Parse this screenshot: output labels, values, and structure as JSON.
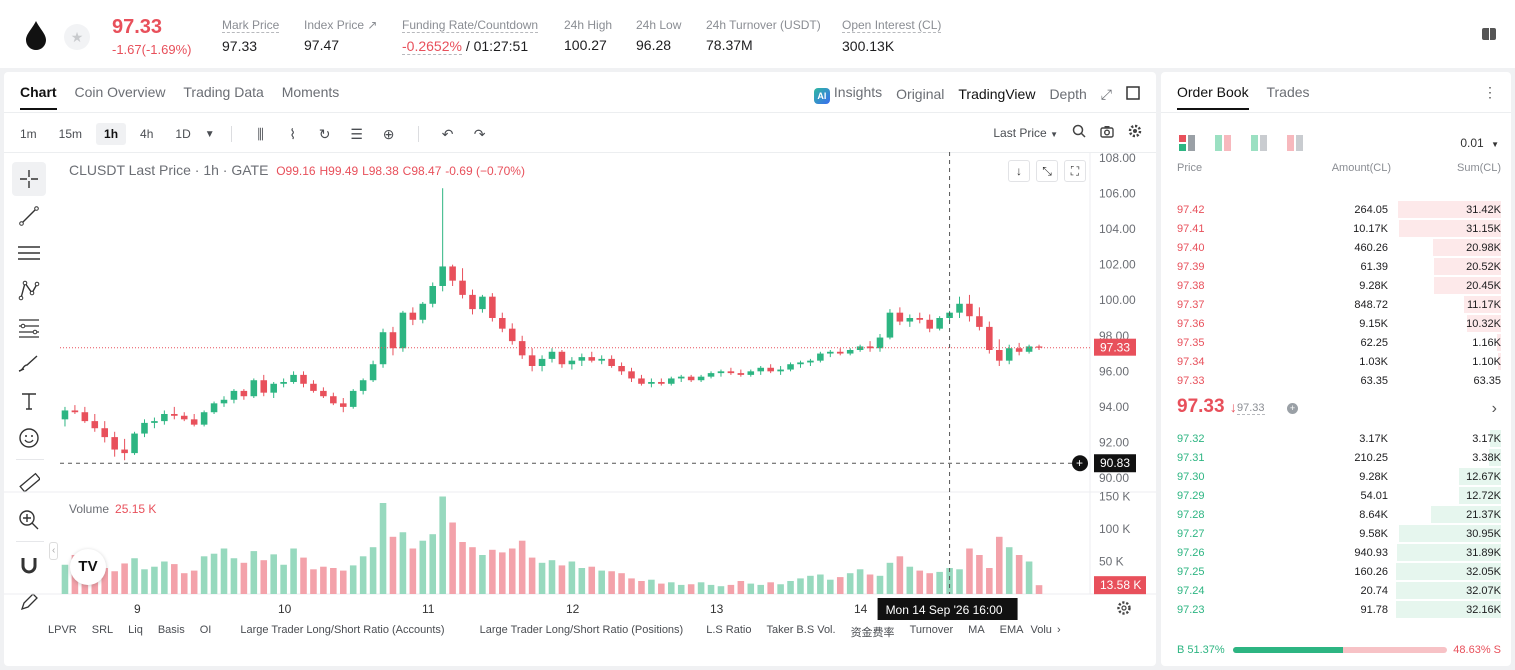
{
  "header": {
    "price": "97.33",
    "change": "-1.67(-1.69%)",
    "stats": [
      {
        "label": "Mark Price",
        "value": "97.33"
      },
      {
        "label": "Index Price ↗",
        "value": "97.47"
      },
      {
        "label": "Funding Rate/Countdown",
        "value": "-0.2652%",
        "value2": "/ 01:27:51"
      },
      {
        "label": "24h High",
        "value": "100.27"
      },
      {
        "label": "24h Low",
        "value": "96.28"
      },
      {
        "label": "24h Turnover (USDT)",
        "value": "78.37M"
      },
      {
        "label": "Open Interest (CL)",
        "value": "300.13K"
      }
    ]
  },
  "chart_tabs": [
    "Chart",
    "Coin Overview",
    "Trading Data",
    "Moments"
  ],
  "view_tabs": {
    "insights": "Insights",
    "original": "Original",
    "tradingview": "TradingView",
    "depth": "Depth"
  },
  "intervals": [
    "1m",
    "15m",
    "1h",
    "4h",
    "1D"
  ],
  "price_type": "Last Price",
  "legend": {
    "symbol": "CLUSDT Last Price · 1h · GATE",
    "o": "O99.16",
    "h": "H99.49",
    "l": "L98.38",
    "c": "C98.47",
    "chg": "-0.69 (−0.70%)"
  },
  "volume_legend": {
    "label": "Volume",
    "value": "25.15 K"
  },
  "price_axis": [
    "108.00",
    "106.00",
    "104.00",
    "102.00",
    "100.00",
    "98.00",
    "96.00",
    "94.00",
    "92.00",
    "90.00"
  ],
  "volume_axis": [
    "150 K",
    "100 K",
    "50 K"
  ],
  "last_price_label": "97.33",
  "cursor_price_label": "90.83",
  "volume_last_label": "13.58 K",
  "x_labels": [
    "9",
    "10",
    "11",
    "12",
    "13",
    "14"
  ],
  "cursor_time": "Mon 14 Sep '26   16:00",
  "indicators": [
    "LPVR",
    "SRL",
    "Liq",
    "Basis",
    "OI",
    "Large Trader Long/Short Ratio (Accounts)",
    "Large Trader Long/Short Ratio (Positions)",
    "L.S Ratio",
    "Taker B.S Vol.",
    "资金费率",
    "Turnover",
    "MA",
    "EMA",
    "Volu"
  ],
  "chart_data": {
    "type": "candlestick",
    "title": "CLUSDT Last Price · 1h · GATE",
    "ylim": [
      90,
      108
    ],
    "x_ticks": [
      "9",
      "10",
      "11",
      "12",
      "13",
      "14"
    ],
    "last_price": 97.33,
    "candles": [
      [
        93.3,
        94.0,
        92.9,
        93.8
      ],
      [
        93.8,
        94.1,
        93.6,
        93.7
      ],
      [
        93.7,
        94.0,
        93.1,
        93.2
      ],
      [
        93.2,
        93.6,
        92.6,
        92.8
      ],
      [
        92.8,
        93.2,
        92.0,
        92.3
      ],
      [
        92.3,
        92.6,
        91.2,
        91.6
      ],
      [
        91.6,
        92.2,
        91.0,
        91.4
      ],
      [
        91.4,
        92.6,
        91.3,
        92.5
      ],
      [
        92.5,
        93.3,
        92.3,
        93.1
      ],
      [
        93.1,
        93.4,
        92.8,
        93.2
      ],
      [
        93.2,
        93.8,
        93.0,
        93.6
      ],
      [
        93.6,
        94.0,
        93.3,
        93.5
      ],
      [
        93.5,
        93.7,
        93.2,
        93.3
      ],
      [
        93.3,
        93.6,
        92.9,
        93.0
      ],
      [
        93.0,
        93.8,
        92.9,
        93.7
      ],
      [
        93.7,
        94.3,
        93.6,
        94.2
      ],
      [
        94.2,
        94.6,
        94.0,
        94.4
      ],
      [
        94.4,
        95.0,
        94.2,
        94.9
      ],
      [
        94.9,
        95.0,
        94.4,
        94.6
      ],
      [
        94.6,
        95.6,
        94.5,
        95.5
      ],
      [
        95.5,
        95.8,
        94.6,
        94.8
      ],
      [
        94.8,
        95.4,
        94.5,
        95.3
      ],
      [
        95.3,
        95.6,
        95.1,
        95.4
      ],
      [
        95.4,
        96.0,
        95.3,
        95.8
      ],
      [
        95.8,
        96.0,
        95.1,
        95.3
      ],
      [
        95.3,
        95.5,
        94.8,
        94.9
      ],
      [
        94.9,
        95.1,
        94.5,
        94.6
      ],
      [
        94.6,
        94.8,
        94.1,
        94.2
      ],
      [
        94.2,
        94.5,
        93.7,
        94.0
      ],
      [
        94.0,
        95.0,
        93.9,
        94.9
      ],
      [
        94.9,
        95.6,
        94.7,
        95.5
      ],
      [
        95.5,
        96.6,
        95.4,
        96.4
      ],
      [
        96.4,
        98.4,
        96.2,
        98.2
      ],
      [
        98.2,
        98.5,
        96.9,
        97.3
      ],
      [
        97.3,
        99.4,
        97.1,
        99.3
      ],
      [
        99.3,
        99.6,
        98.6,
        98.9
      ],
      [
        98.9,
        99.9,
        98.7,
        99.8
      ],
      [
        99.8,
        101.0,
        99.6,
        100.8
      ],
      [
        100.8,
        106.3,
        100.5,
        101.9
      ],
      [
        101.9,
        102.0,
        100.8,
        101.1
      ],
      [
        101.1,
        101.8,
        100.1,
        100.3
      ],
      [
        100.3,
        100.6,
        99.2,
        99.5
      ],
      [
        99.5,
        100.3,
        99.3,
        100.2
      ],
      [
        100.2,
        100.4,
        98.8,
        99.0
      ],
      [
        99.0,
        99.3,
        98.2,
        98.4
      ],
      [
        98.4,
        98.7,
        97.5,
        97.7
      ],
      [
        97.7,
        98.0,
        96.7,
        96.9
      ],
      [
        96.9,
        97.3,
        96.0,
        96.3
      ],
      [
        96.3,
        96.9,
        96.0,
        96.7
      ],
      [
        96.7,
        97.3,
        96.5,
        97.1
      ],
      [
        97.1,
        97.2,
        96.2,
        96.4
      ],
      [
        96.4,
        96.8,
        96.1,
        96.6
      ],
      [
        96.6,
        97.0,
        96.3,
        96.8
      ],
      [
        96.8,
        97.1,
        96.5,
        96.6
      ],
      [
        96.6,
        96.9,
        96.4,
        96.7
      ],
      [
        96.7,
        96.9,
        96.2,
        96.3
      ],
      [
        96.3,
        96.5,
        95.8,
        96.0
      ],
      [
        96.0,
        96.2,
        95.4,
        95.6
      ],
      [
        95.6,
        95.8,
        95.2,
        95.3
      ],
      [
        95.3,
        95.6,
        95.1,
        95.4
      ],
      [
        95.4,
        95.6,
        95.2,
        95.3
      ],
      [
        95.3,
        95.7,
        95.2,
        95.6
      ],
      [
        95.6,
        95.8,
        95.4,
        95.7
      ],
      [
        95.7,
        95.8,
        95.4,
        95.5
      ],
      [
        95.5,
        95.8,
        95.4,
        95.7
      ],
      [
        95.7,
        96.0,
        95.6,
        95.9
      ],
      [
        95.9,
        96.1,
        95.7,
        96.0
      ],
      [
        96.0,
        96.2,
        95.8,
        95.9
      ],
      [
        95.9,
        96.1,
        95.7,
        95.8
      ],
      [
        95.8,
        96.1,
        95.7,
        96.0
      ],
      [
        96.0,
        96.3,
        95.8,
        96.2
      ],
      [
        96.2,
        96.4,
        95.9,
        96.0
      ],
      [
        96.0,
        96.3,
        95.8,
        96.1
      ],
      [
        96.1,
        96.5,
        96.0,
        96.4
      ],
      [
        96.4,
        96.6,
        96.2,
        96.5
      ],
      [
        96.5,
        96.7,
        96.3,
        96.6
      ],
      [
        96.6,
        97.1,
        96.5,
        97.0
      ],
      [
        97.0,
        97.2,
        96.8,
        97.1
      ],
      [
        97.1,
        97.3,
        96.9,
        97.0
      ],
      [
        97.0,
        97.3,
        96.9,
        97.2
      ],
      [
        97.2,
        97.5,
        97.1,
        97.4
      ],
      [
        97.4,
        97.7,
        97.1,
        97.3
      ],
      [
        97.3,
        98.1,
        97.1,
        97.9
      ],
      [
        97.9,
        99.5,
        97.8,
        99.3
      ],
      [
        99.3,
        99.6,
        98.6,
        98.8
      ],
      [
        98.8,
        99.2,
        98.5,
        99.0
      ],
      [
        99.0,
        99.3,
        98.7,
        98.9
      ],
      [
        98.9,
        99.2,
        98.2,
        98.4
      ],
      [
        98.4,
        99.1,
        98.3,
        99.0
      ],
      [
        99.0,
        99.4,
        98.8,
        99.3
      ],
      [
        99.3,
        100.2,
        99.0,
        99.8
      ],
      [
        99.8,
        100.3,
        98.8,
        99.1
      ],
      [
        99.1,
        99.6,
        98.3,
        98.5
      ],
      [
        98.5,
        98.8,
        97.0,
        97.2
      ],
      [
        97.2,
        97.8,
        96.3,
        96.6
      ],
      [
        96.6,
        97.5,
        96.4,
        97.3
      ],
      [
        97.3,
        97.6,
        96.9,
        97.1
      ],
      [
        97.1,
        97.5,
        97.0,
        97.4
      ],
      [
        97.4,
        97.5,
        97.2,
        97.33
      ]
    ],
    "volume": {
      "ylim": [
        0,
        160000
      ],
      "values": [
        45000,
        60000,
        52000,
        48000,
        40000,
        35000,
        47000,
        55000,
        38000,
        42000,
        50000,
        46000,
        32000,
        36000,
        58000,
        62000,
        70000,
        55000,
        48000,
        66000,
        52000,
        61000,
        45000,
        70000,
        56000,
        38000,
        42000,
        40000,
        36000,
        44000,
        58000,
        72000,
        140000,
        88000,
        95000,
        70000,
        82000,
        92000,
        150000,
        110000,
        80000,
        72000,
        60000,
        68000,
        64000,
        70000,
        82000,
        56000,
        48000,
        52000,
        44000,
        50000,
        40000,
        42000,
        36000,
        35000,
        32000,
        24000,
        20000,
        22000,
        16000,
        18000,
        14000,
        15000,
        18000,
        14000,
        12000,
        14000,
        20000,
        16000,
        14000,
        18000,
        15000,
        20000,
        24000,
        28000,
        30000,
        22000,
        26000,
        32000,
        38000,
        30000,
        28000,
        48000,
        58000,
        42000,
        36000,
        32000,
        34000,
        40000,
        38000,
        70000,
        60000,
        40000,
        88000,
        72000,
        60000,
        50000,
        13580
      ]
    }
  },
  "orderbook": {
    "tabs": [
      "Order Book",
      "Trades"
    ],
    "precision": "0.01",
    "headers": {
      "price": "Price",
      "amount": "Amount(CL)",
      "sum": "Sum(CL)"
    },
    "asks": [
      {
        "price": "97.42",
        "amount": "264.05",
        "sum": "31.42K",
        "depth": 0.98
      },
      {
        "price": "97.41",
        "amount": "10.17K",
        "sum": "31.15K",
        "depth": 0.97
      },
      {
        "price": "97.40",
        "amount": "460.26",
        "sum": "20.98K",
        "depth": 0.65
      },
      {
        "price": "97.39",
        "amount": "61.39",
        "sum": "20.52K",
        "depth": 0.64
      },
      {
        "price": "97.38",
        "amount": "9.28K",
        "sum": "20.45K",
        "depth": 0.64
      },
      {
        "price": "97.37",
        "amount": "848.72",
        "sum": "11.17K",
        "depth": 0.35
      },
      {
        "price": "97.36",
        "amount": "9.15K",
        "sum": "10.32K",
        "depth": 0.32
      },
      {
        "price": "97.35",
        "amount": "62.25",
        "sum": "1.16K",
        "depth": 0.04
      },
      {
        "price": "97.34",
        "amount": "1.03K",
        "sum": "1.10K",
        "depth": 0.03
      },
      {
        "price": "97.33",
        "amount": "63.35",
        "sum": "63.35",
        "depth": 0.0
      }
    ],
    "mid_price": "97.33",
    "mid_mark": "97.33",
    "bids": [
      {
        "price": "97.32",
        "amount": "3.17K",
        "sum": "3.17K",
        "depth": 0.1
      },
      {
        "price": "97.31",
        "amount": "210.25",
        "sum": "3.38K",
        "depth": 0.11
      },
      {
        "price": "97.30",
        "amount": "9.28K",
        "sum": "12.67K",
        "depth": 0.4
      },
      {
        "price": "97.29",
        "amount": "54.01",
        "sum": "12.72K",
        "depth": 0.4
      },
      {
        "price": "97.28",
        "amount": "8.64K",
        "sum": "21.37K",
        "depth": 0.67
      },
      {
        "price": "97.27",
        "amount": "9.58K",
        "sum": "30.95K",
        "depth": 0.97
      },
      {
        "price": "97.26",
        "amount": "940.93",
        "sum": "31.89K",
        "depth": 0.99
      },
      {
        "price": "97.25",
        "amount": "160.26",
        "sum": "32.05K",
        "depth": 1.0
      },
      {
        "price": "97.24",
        "amount": "20.74",
        "sum": "32.07K",
        "depth": 1.0
      },
      {
        "price": "97.23",
        "amount": "91.78",
        "sum": "32.16K",
        "depth": 1.0
      }
    ],
    "buy_ratio": "B 51.37%",
    "sell_ratio": "48.63% S",
    "buy_fraction": 0.5137
  },
  "colors": {
    "up": "#2db582",
    "down": "#e8505b",
    "up_light": "#e6f6ee",
    "down_light": "#fde9ea"
  }
}
